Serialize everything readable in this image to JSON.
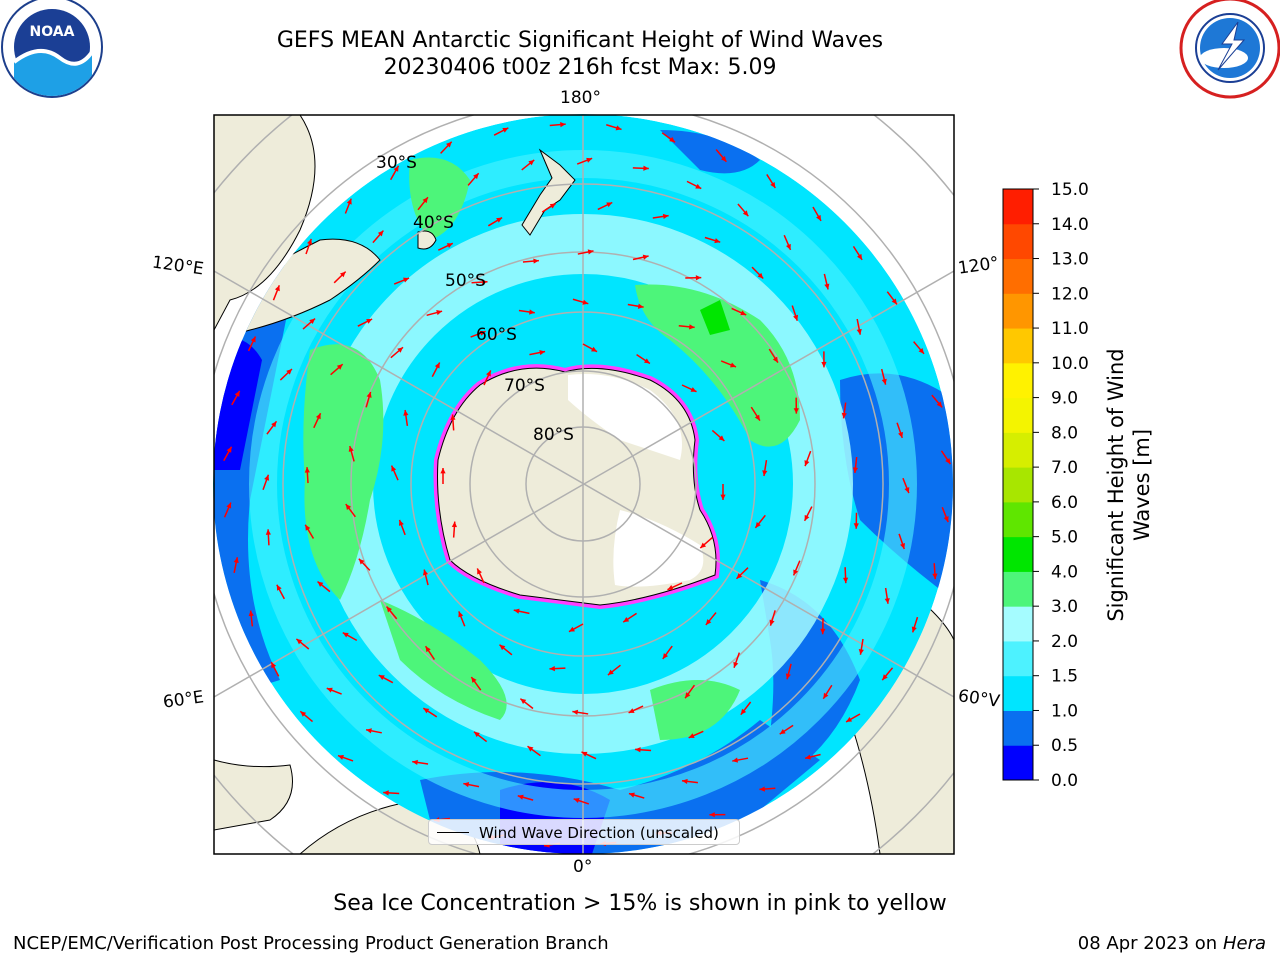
{
  "header": {
    "title_line1": "GEFS MEAN Antarctic Significant Height of Wind Waves",
    "title_date": "20230406 t00z 216h fcst",
    "title_max": "Max: 5.09"
  },
  "logos": {
    "left": {
      "icon": "noaa-logo-icon",
      "text": "NOAA",
      "ring_text": "NATIONAL OCEANIC AND ATMOSPHERIC ADMINISTRATION · U.S. DEPARTMENT OF COMMERCE"
    },
    "right": {
      "icon": "nws-logo-icon",
      "ring_text": "NATIONAL WEATHER SERVICE"
    }
  },
  "map": {
    "longitude_labels": {
      "top": "180°",
      "bottom": "0°",
      "left_upper": "120°E",
      "left_lower": "60°E",
      "right_upper": "120°",
      "right_lower": "60°V"
    },
    "latitude_labels": [
      "30°S",
      "40°S",
      "50°S",
      "60°S",
      "70°S",
      "80°S"
    ],
    "legend": "Wind Wave Direction (unscaled)",
    "colors": {
      "land": "#eeecda",
      "ice": "#ffffff",
      "arrow": "#ff0000",
      "grid": "#b0b0b0"
    }
  },
  "colorbar": {
    "label_line1": "Significant Height of Wind",
    "label_line2": "Waves [m]",
    "ticks": [
      "0.0",
      "0.5",
      "1.0",
      "1.5",
      "2.0",
      "3.0",
      "4.0",
      "5.0",
      "6.0",
      "7.0",
      "8.0",
      "9.0",
      "10.0",
      "11.0",
      "12.0",
      "13.0",
      "14.0",
      "15.0"
    ],
    "colors": [
      "#0000ff",
      "#0a70f0",
      "#00e5ff",
      "#4df2ff",
      "#a5fcff",
      "#4df57a",
      "#00e600",
      "#5fe600",
      "#a8e600",
      "#d6ee00",
      "#f4f400",
      "#fff200",
      "#ffc800",
      "#ff9600",
      "#ff6e00",
      "#ff4800",
      "#ff1e00"
    ]
  },
  "footer": {
    "caption": "Sea Ice Concentration > 15% is shown in pink to yellow",
    "credit": "NCEP/EMC/Verification Post Processing Product Generation Branch",
    "date": "08 Apr 2023 on",
    "host": "Hera"
  }
}
